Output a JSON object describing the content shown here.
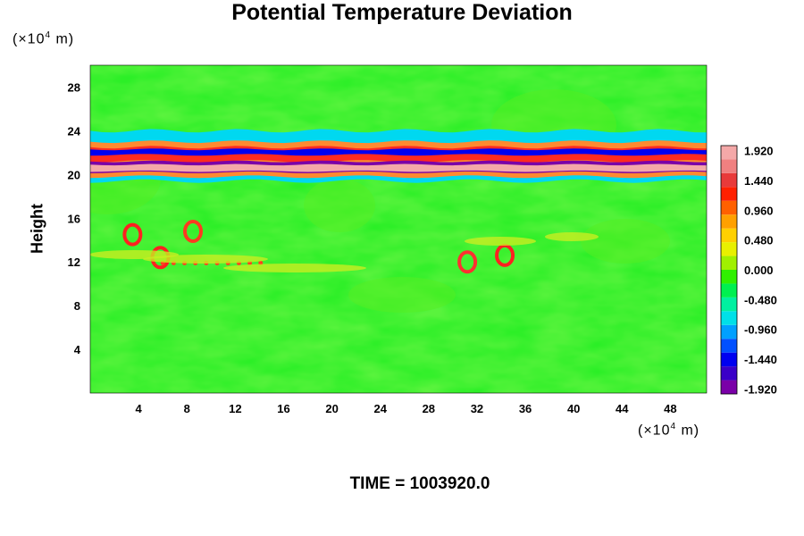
{
  "chart_data": {
    "type": "heatmap",
    "title": "Potential Temperature Deviation",
    "xlabel": "",
    "ylabel": "Height",
    "x_unit": "(×10",
    "x_unit_exp": "4",
    "x_unit_tail": " m)",
    "y_unit": "(×10",
    "y_unit_exp": "4",
    "y_unit_tail": " m)",
    "xlim": [
      0,
      51
    ],
    "ylim": [
      0,
      30
    ],
    "x_ticks": [
      "4",
      "8",
      "12",
      "16",
      "20",
      "24",
      "28",
      "32",
      "36",
      "40",
      "44",
      "48"
    ],
    "x_tick_values": [
      4,
      8,
      12,
      16,
      20,
      24,
      28,
      32,
      36,
      40,
      44,
      48
    ],
    "y_ticks": [
      "4",
      "8",
      "12",
      "16",
      "20",
      "24",
      "28"
    ],
    "y_tick_values": [
      4,
      8,
      12,
      16,
      20,
      24,
      28
    ],
    "colorbar": {
      "range": [
        -2.0,
        2.0
      ],
      "tick_labels": [
        "1.920",
        "1.440",
        "0.960",
        "0.480",
        "0.000",
        "-0.480",
        "-0.960",
        "-1.440",
        "-1.920"
      ],
      "tick_values": [
        1.92,
        1.44,
        0.96,
        0.48,
        0.0,
        -0.48,
        -0.96,
        -1.44,
        -1.92
      ],
      "colors": [
        "#7a00a8",
        "#3a00c8",
        "#0000f0",
        "#0050ff",
        "#00a0ff",
        "#00e0e8",
        "#00f0a0",
        "#00f050",
        "#30f000",
        "#a0f000",
        "#e8f000",
        "#ffd000",
        "#ffa000",
        "#ff6000",
        "#ff2000",
        "#e83a3a",
        "#f08080",
        "#f4a8a8"
      ]
    },
    "features": [
      {
        "label": "upper layer negative band",
        "x": [
          0,
          51
        ],
        "y": 20.6,
        "value": -1.9
      },
      {
        "label": "upper layer positive band",
        "x": [
          0,
          51
        ],
        "y": 21.0,
        "value": 1.9
      },
      {
        "label": "lower layer warm eddies",
        "x": [
          1,
          14
        ],
        "y": 14,
        "value": 1.6
      },
      {
        "label": "lower layer warm eddies",
        "x": [
          32,
          37
        ],
        "y": 13,
        "value": 1.4
      }
    ]
  },
  "footer": {
    "time_label": "TIME = 1003920.0"
  }
}
